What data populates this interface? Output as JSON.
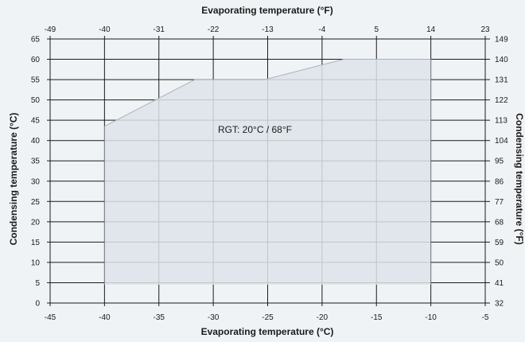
{
  "chart_data": {
    "type": "area",
    "x_bottom": {
      "label": "Evaporating temperature (°C)",
      "range": [
        -45,
        -5
      ],
      "ticks": [
        -45,
        -40,
        -35,
        -30,
        -25,
        -20,
        -15,
        -10,
        -5
      ]
    },
    "x_top": {
      "label": "Evaporating temperature (°F)",
      "ticks": [
        "-49",
        "-40",
        "-31",
        "-22",
        "-13",
        "-4",
        "5",
        "14",
        "23"
      ]
    },
    "y_left": {
      "label": "Condensing temperature (°C)",
      "range": [
        0,
        65
      ],
      "ticks": [
        0,
        5,
        10,
        15,
        20,
        25,
        30,
        35,
        40,
        45,
        50,
        55,
        60,
        65
      ]
    },
    "y_right": {
      "label": "Condensing temperature (°F)",
      "ticks": [
        "32",
        "41",
        "50",
        "59",
        "68",
        "77",
        "86",
        "95",
        "104",
        "113",
        "122",
        "131",
        "140",
        "149"
      ]
    },
    "grid": true,
    "envelope": {
      "x": [
        -40,
        -40,
        -31.7,
        -25.3,
        -18,
        -10,
        -10
      ],
      "y": [
        4.5,
        43.5,
        55,
        55,
        60,
        60,
        4.5
      ]
    },
    "envelope_color": "#dde3e9",
    "envelope_edge_color": "#a7b3bd",
    "annotation": "RGT: 20°C / 68°F"
  }
}
